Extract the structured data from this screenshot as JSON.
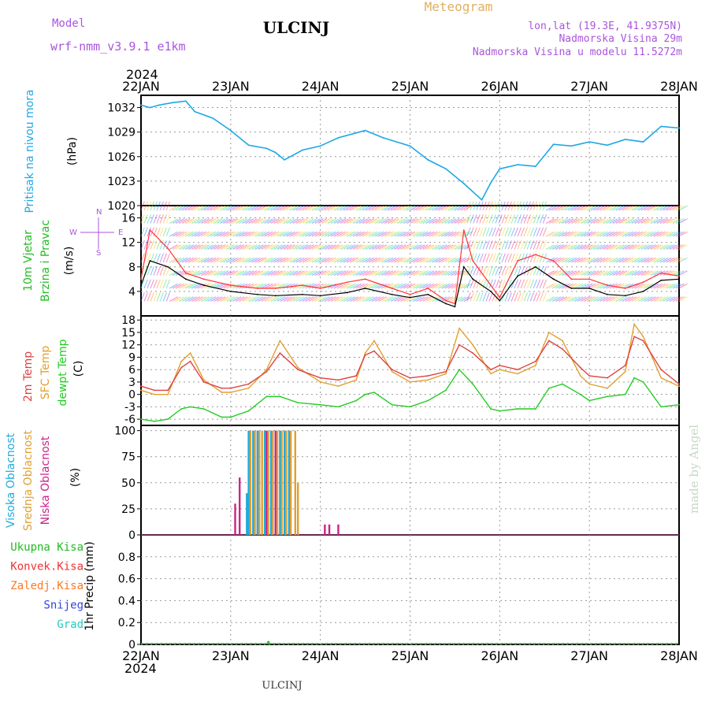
{
  "header": {
    "model_label": "Model",
    "model_name": "wrf-nmm_v3.9.1  e1km",
    "station": "ULCINJ",
    "kind": "Meteogram",
    "lonlat": "lon,lat (19.3E, 41.9375N)",
    "elevation": "Nadmorska Visina 29m",
    "model_elevation": "Nadmorska Visina u modelu 11.5272m"
  },
  "footer": {
    "station": "ULCINJ",
    "credit": "made by Angel"
  },
  "time_axis": {
    "year": "2024",
    "dates": [
      "22JAN",
      "23JAN",
      "24JAN",
      "25JAN",
      "26JAN",
      "27JAN",
      "28JAN"
    ]
  },
  "colors": {
    "pressure": "#1ea7e6",
    "wind_label": "#22bb22",
    "wind_speed": "#000000",
    "gust": "#ff3333",
    "temp2m": "#e04040",
    "sfc_temp": "#e0a030",
    "dewpt": "#22cc22",
    "high_cloud": "#22aadd",
    "mid_cloud": "#e0a030",
    "low_cloud": "#cc2288",
    "total_precip": "#22bb22",
    "conv_precip": "#ee3333",
    "frozen_precip": "#ff7722",
    "snow": "#3344dd",
    "hail": "#22ccbb",
    "label_purple": "#aa55dd"
  },
  "chart_data": [
    {
      "type": "line",
      "panel": "pressure",
      "ylabels": [
        "Pritisak na nivou mora",
        "(hPa)"
      ],
      "yticks": [
        "1032",
        "1029",
        "1026",
        "1023",
        "1020"
      ],
      "ylim": [
        1020,
        1033.5
      ],
      "x_days": [
        0,
        0.1,
        0.2,
        0.35,
        0.5,
        0.6,
        0.8,
        1.0,
        1.2,
        1.4,
        1.5,
        1.6,
        1.8,
        2.0,
        2.2,
        2.4,
        2.5,
        2.7,
        3.0,
        3.2,
        3.4,
        3.6,
        3.8,
        3.9,
        4.0,
        4.2,
        4.4,
        4.6,
        4.8,
        5.0,
        5.2,
        5.4,
        5.6,
        5.8,
        6.0
      ],
      "series": [
        {
          "values": [
            1032.3,
            1032.0,
            1032.3,
            1032.6,
            1032.8,
            1031.5,
            1030.7,
            1029.2,
            1027.4,
            1027.0,
            1026.5,
            1025.6,
            1026.8,
            1027.3,
            1028.3,
            1028.9,
            1029.2,
            1028.3,
            1027.3,
            1025.6,
            1024.5,
            1022.7,
            1020.7,
            1022.8,
            1024.5,
            1025.0,
            1024.8,
            1027.5,
            1027.3,
            1027.8,
            1027.4,
            1028.1,
            1027.8,
            1029.7,
            1029.5
          ]
        }
      ]
    },
    {
      "type": "line",
      "panel": "wind",
      "ylabels": [
        "10m Vjetar",
        "Brzina i Pravac",
        "(m/s)"
      ],
      "yticks": [
        "16",
        "12",
        "8",
        "4"
      ],
      "ylim": [
        0,
        18
      ],
      "compass": [
        "W",
        "E",
        "N",
        "S"
      ],
      "x_days": [
        0,
        0.1,
        0.3,
        0.5,
        0.7,
        1.0,
        1.3,
        1.5,
        1.8,
        2.0,
        2.3,
        2.5,
        2.8,
        3.0,
        3.2,
        3.4,
        3.5,
        3.6,
        3.7,
        3.9,
        4.0,
        4.2,
        4.4,
        4.6,
        4.8,
        5.0,
        5.2,
        5.4,
        5.6,
        5.8,
        6.0
      ],
      "series": [
        {
          "name": "speed",
          "values": [
            5,
            9,
            8,
            6,
            5,
            4,
            3.5,
            3.3,
            3.5,
            3.3,
            3.8,
            4.5,
            3.5,
            3.0,
            3.5,
            2.0,
            1.5,
            8,
            6,
            4,
            2.5,
            6.5,
            8,
            6,
            4.5,
            4.5,
            3.5,
            3.3,
            4.0,
            5.8,
            6
          ]
        },
        {
          "name": "gust",
          "values": [
            6,
            14,
            11,
            7,
            6,
            5,
            4.5,
            4.5,
            5,
            4.5,
            5.5,
            6,
            4.5,
            3.5,
            4.5,
            2.5,
            2,
            14,
            9,
            5,
            3,
            9,
            10,
            9,
            6,
            6,
            5,
            4.5,
            5.5,
            7,
            6.5
          ]
        }
      ]
    },
    {
      "type": "line",
      "panel": "temperature",
      "ylabels": [
        "2m Temp",
        "SFC Temp",
        "dewpt Temp",
        "(C)"
      ],
      "yticks": [
        "18",
        "15",
        "12",
        "9",
        "6",
        "3",
        "0",
        "-3",
        "-6"
      ],
      "ylim": [
        -7.5,
        19
      ],
      "x_days": [
        0,
        0.15,
        0.3,
        0.45,
        0.55,
        0.7,
        0.9,
        1.0,
        1.2,
        1.4,
        1.55,
        1.75,
        2.0,
        2.2,
        2.4,
        2.5,
        2.6,
        2.8,
        3.0,
        3.2,
        3.4,
        3.55,
        3.7,
        3.9,
        4.0,
        4.2,
        4.4,
        4.55,
        4.7,
        4.9,
        5.0,
        5.2,
        5.4,
        5.5,
        5.6,
        5.8,
        6.0
      ],
      "series": [
        {
          "name": "2m",
          "values": [
            2,
            1,
            1,
            6.5,
            8,
            3,
            1.5,
            1.5,
            2.5,
            5.5,
            10,
            6,
            4,
            3.5,
            4.5,
            9.5,
            10.5,
            6,
            4,
            4.5,
            5.5,
            12,
            10,
            6,
            7,
            6,
            8,
            13,
            11,
            6.5,
            4.5,
            4,
            7,
            14,
            13,
            6,
            2.5
          ]
        },
        {
          "name": "sfc",
          "values": [
            1,
            0,
            0,
            8,
            10,
            3.5,
            0.5,
            0.5,
            1.5,
            6,
            13,
            6.5,
            3,
            2,
            3.5,
            10,
            13,
            5.5,
            3,
            3.5,
            5,
            16,
            12,
            5,
            6,
            5,
            7,
            15,
            13,
            4.5,
            2.5,
            1.5,
            5.5,
            17,
            14,
            4,
            2
          ]
        },
        {
          "name": "dewpt",
          "values": [
            -6,
            -6.5,
            -6,
            -3.5,
            -3,
            -3.5,
            -5.5,
            -5.5,
            -4,
            -0.5,
            -0.5,
            -2,
            -2.5,
            -3,
            -1.5,
            0,
            0.5,
            -2.5,
            -3,
            -1.5,
            1,
            6,
            2.5,
            -3.5,
            -4,
            -3.5,
            -3.5,
            1.5,
            2.5,
            0,
            -1.5,
            -0.5,
            0,
            4,
            3,
            -3,
            -2.5
          ]
        }
      ]
    },
    {
      "type": "bar",
      "panel": "cloud",
      "ylabels": [
        "Visoka Oblacnost",
        "Srednja Oblacnost",
        "Niska Oblacnost",
        "(%)"
      ],
      "yticks": [
        "100",
        "75",
        "50",
        "25",
        "0"
      ],
      "ylim": [
        0,
        105
      ],
      "series": [
        {
          "name": "low",
          "x_days": [
            1.05,
            1.1,
            1.3,
            1.4,
            1.5,
            2.05,
            2.1,
            2.2
          ],
          "values": [
            30,
            55,
            100,
            100,
            100,
            10,
            10,
            10
          ]
        },
        {
          "name": "mid",
          "x_days": [
            1.22,
            1.27,
            1.32,
            1.35,
            1.42,
            1.47,
            1.52,
            1.57,
            1.62,
            1.67,
            1.72,
            1.75
          ],
          "values": [
            100,
            100,
            100,
            100,
            100,
            100,
            100,
            100,
            100,
            100,
            100,
            50
          ]
        },
        {
          "name": "high",
          "x_days": [
            1.18,
            1.2,
            1.25,
            1.3,
            1.38,
            1.45,
            1.55,
            1.6,
            1.65
          ],
          "values": [
            40,
            100,
            100,
            100,
            100,
            100,
            100,
            100,
            100
          ]
        }
      ]
    },
    {
      "type": "bar",
      "panel": "precip",
      "ylabels": [
        "Ukupna Kisa",
        "Konvek.Kisa",
        "Zaledj.Kisa",
        "Snijeg",
        "Grad",
        "1hr Precip (mm)"
      ],
      "yticks": [
        "0.8",
        "0.6",
        "0.4",
        "0.2",
        "0"
      ],
      "ylim": [
        0,
        1.0
      ],
      "series": [
        {
          "name": "total",
          "x_days": [
            1.42
          ],
          "values": [
            0.03
          ]
        }
      ]
    }
  ]
}
